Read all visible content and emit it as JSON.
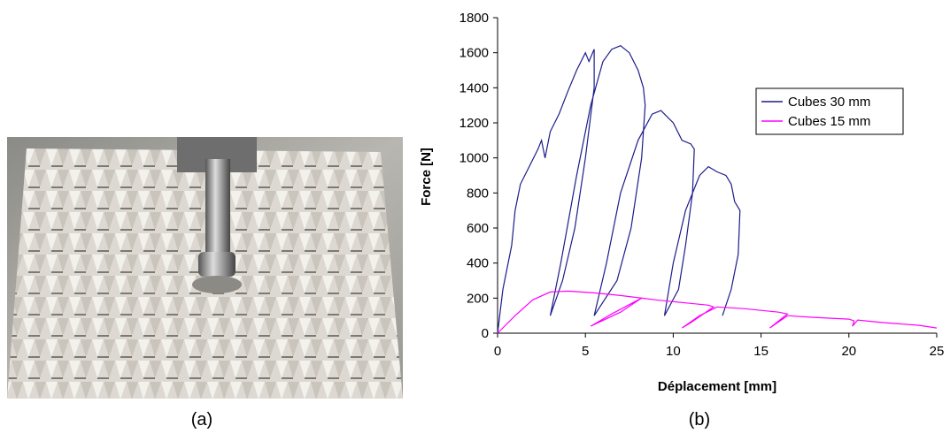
{
  "chart_data": {
    "type": "line",
    "xlabel": "Déplacement [mm]",
    "ylabel": "Force [N]",
    "captions": [
      "(a)",
      "(b)"
    ],
    "xlim": [
      0,
      25
    ],
    "xticks": [
      0,
      5,
      10,
      15,
      20,
      25
    ],
    "ylim": [
      0,
      1800
    ],
    "yticks": [
      0,
      200,
      400,
      600,
      800,
      1000,
      1200,
      1400,
      1600,
      1800
    ],
    "grid": false,
    "legend": "upper right",
    "series": [
      {
        "name": "Cubes 30 mm",
        "color": "#1c1c8a",
        "x": [
          0,
          0.3,
          0.8,
          1,
          1.3,
          1.8,
          2.3,
          2.5,
          2.7,
          3,
          3.5,
          4,
          4.5,
          5,
          5.2,
          5.5,
          5.5,
          5,
          4.4,
          3.7,
          3,
          3.6,
          4.5,
          5.3,
          6,
          6.5,
          7,
          7.5,
          8,
          8.3,
          8.4,
          8.2,
          7.6,
          6.8,
          5.5,
          6.2,
          7,
          8,
          8.8,
          9.3,
          10,
          10.5,
          11,
          11.2,
          11.1,
          10.7,
          10.3,
          9.5,
          10,
          10.7,
          11.5,
          12,
          12.5,
          13,
          13.3,
          13.5,
          13.8,
          13.7,
          13.3,
          12.8
        ],
        "values": [
          0,
          250,
          500,
          700,
          850,
          950,
          1050,
          1100,
          1000,
          1150,
          1250,
          1380,
          1500,
          1600,
          1550,
          1620,
          1400,
          1000,
          600,
          300,
          100,
          400,
          900,
          1300,
          1550,
          1620,
          1640,
          1600,
          1500,
          1400,
          1300,
          1000,
          600,
          300,
          100,
          400,
          800,
          1100,
          1250,
          1270,
          1200,
          1100,
          1080,
          1050,
          800,
          500,
          250,
          100,
          400,
          700,
          900,
          950,
          920,
          900,
          850,
          750,
          700,
          450,
          250,
          100
        ]
      },
      {
        "name": "Cubes 15 mm",
        "color": "#ff00ff",
        "x": [
          0,
          1,
          2,
          3,
          4,
          5.5,
          7,
          8.2,
          7,
          5.3,
          6.5,
          8.2,
          9,
          10,
          11,
          12,
          12.3,
          11,
          10.5,
          11.5,
          12.5,
          14,
          16,
          16.5,
          15.5,
          16.5,
          18,
          20,
          20.3,
          20.2,
          20.5,
          22,
          24,
          25
        ],
        "values": [
          0,
          100,
          190,
          235,
          240,
          230,
          215,
          200,
          120,
          40,
          110,
          200,
          190,
          180,
          170,
          160,
          150,
          60,
          30,
          100,
          150,
          140,
          120,
          110,
          30,
          100,
          90,
          80,
          70,
          40,
          75,
          60,
          45,
          30
        ]
      }
    ]
  }
}
